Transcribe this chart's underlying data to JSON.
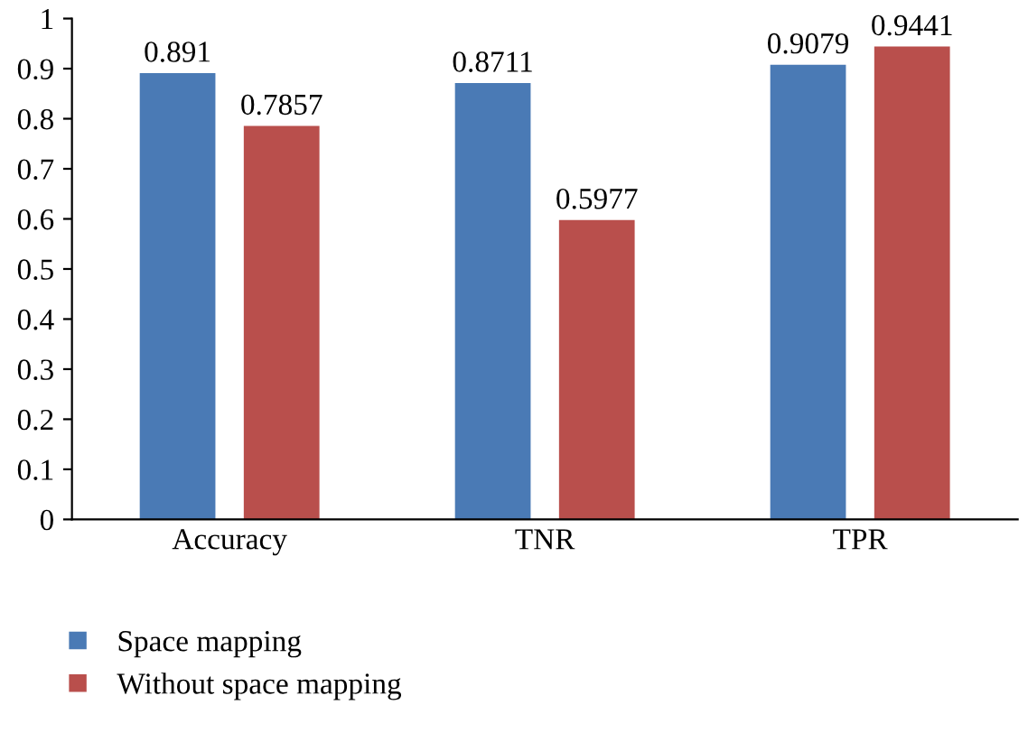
{
  "chart_data": {
    "type": "bar",
    "categories": [
      "Accuracy",
      "TNR",
      "TPR"
    ],
    "series": [
      {
        "name": "Space mapping",
        "color": "#4a7ab5",
        "values": [
          0.891,
          0.8711,
          0.9079
        ]
      },
      {
        "name": "Without space mapping",
        "color": "#b94f4c",
        "values": [
          0.7857,
          0.5977,
          0.9441
        ]
      }
    ],
    "ylim": [
      0,
      1
    ],
    "yticks": [
      0,
      0.1,
      0.2,
      0.3,
      0.4,
      0.5,
      0.6,
      0.7,
      0.8,
      0.9,
      1
    ],
    "data_labels": true,
    "grid": false,
    "legend": "bottom left"
  }
}
